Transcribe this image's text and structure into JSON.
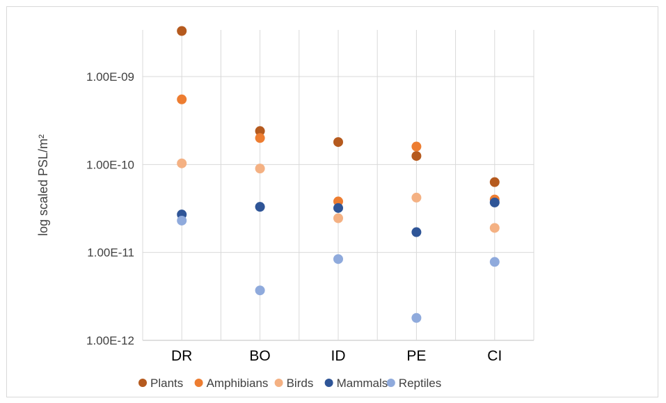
{
  "chart_data": {
    "type": "scatter",
    "title": "",
    "xlabel": "",
    "ylabel": "log scaled PSL/m²",
    "yscale": "log",
    "ylim": [
      1e-12,
      4.5e-09
    ],
    "grid": true,
    "legend_position": "bottom",
    "categories": [
      "DR",
      "BO",
      "ID",
      "PE",
      "CI"
    ],
    "y_ticks": [
      {
        "value": 1e-12,
        "label": "1.00E-12"
      },
      {
        "value": 1e-11,
        "label": "1.00E-11"
      },
      {
        "value": 1e-10,
        "label": "1.00E-10"
      },
      {
        "value": 1e-09,
        "label": "1.00E-09"
      }
    ],
    "series": [
      {
        "name": "Plants",
        "color": "#b55a1e",
        "values": [
          3.3e-09,
          2.4e-10,
          1.8e-10,
          1.25e-10,
          6.3e-11
        ]
      },
      {
        "name": "Amphibians",
        "color": "#ed7d31",
        "values": [
          5.5e-10,
          2e-10,
          3.8e-11,
          1.6e-10,
          4e-11
        ]
      },
      {
        "name": "Birds",
        "color": "#f4b183",
        "values": [
          1.03e-10,
          9e-11,
          2.45e-11,
          4.2e-11,
          1.9e-11
        ]
      },
      {
        "name": "Mammals",
        "color": "#2f5597",
        "values": [
          2.7e-11,
          3.3e-11,
          3.2e-11,
          1.7e-11,
          3.7e-11
        ]
      },
      {
        "name": "Reptiles",
        "color": "#8faadc",
        "values": [
          2.3e-11,
          3.7e-12,
          8.4e-12,
          1.8e-12,
          7.8e-12
        ]
      }
    ]
  }
}
